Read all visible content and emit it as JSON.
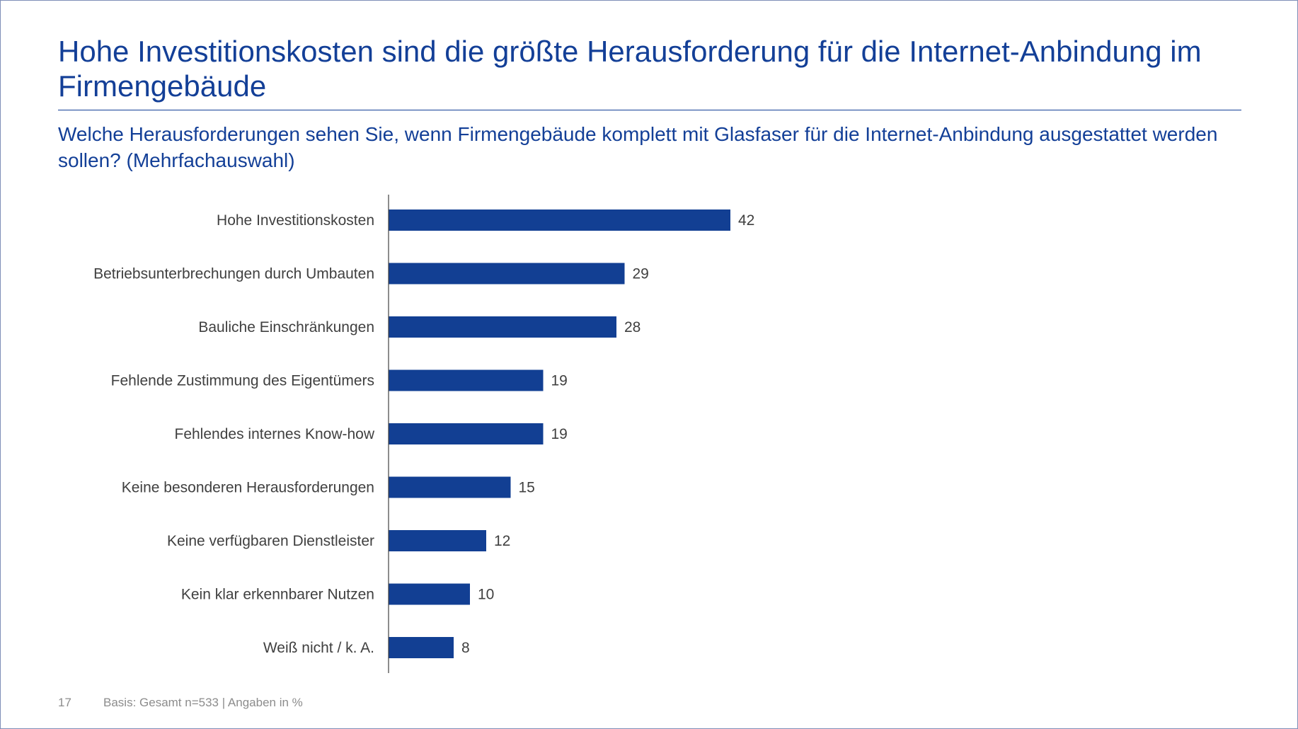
{
  "title": "Hohe Investitionskosten sind die größte Herausforderung für die Internet-Anbindung im Firmengebäude",
  "subtitle": "Welche Herausforderungen sehen Sie, wenn Firmengebäude komplett mit Glasfaser für die Internet-Anbindung ausgestattet werden sollen? (Mehrfachauswahl)",
  "footer": {
    "page_number": "17",
    "basis": "Basis: Gesamt n=533 | Angaben in %"
  },
  "colors": {
    "bar": "#123f93",
    "title": "#133f97",
    "label": "#404040"
  },
  "chart_data": {
    "type": "bar",
    "orientation": "horizontal",
    "categories": [
      "Hohe Investitionskosten",
      "Betriebsunterbrechungen durch Umbauten",
      "Bauliche Einschränkungen",
      "Fehlende Zustimmung des Eigentümers",
      "Fehlendes internes Know-how",
      "Keine besonderen Herausforderungen",
      "Keine verfügbaren Dienstleister",
      "Kein klar erkennbarer Nutzen",
      "Weiß nicht / k. A."
    ],
    "values": [
      42,
      29,
      28,
      19,
      19,
      15,
      12,
      10,
      8
    ],
    "value_labels": [
      "42",
      "29",
      "28",
      "19",
      "19",
      "15",
      "12",
      "10",
      "8"
    ],
    "grid": false
  }
}
